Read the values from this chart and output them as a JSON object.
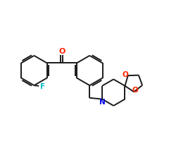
{
  "bg_color": "#ffffff",
  "bond_color": "#1a1a1a",
  "bond_width": 1.4,
  "atom_colors": {
    "O": "#ff2200",
    "N": "#0000ee",
    "F": "#00bbcc"
  },
  "figsize": [
    2.4,
    2.0
  ],
  "dpi": 100,
  "xlim": [
    -4.6,
    2.4
  ],
  "ylim": [
    -1.8,
    1.8
  ]
}
